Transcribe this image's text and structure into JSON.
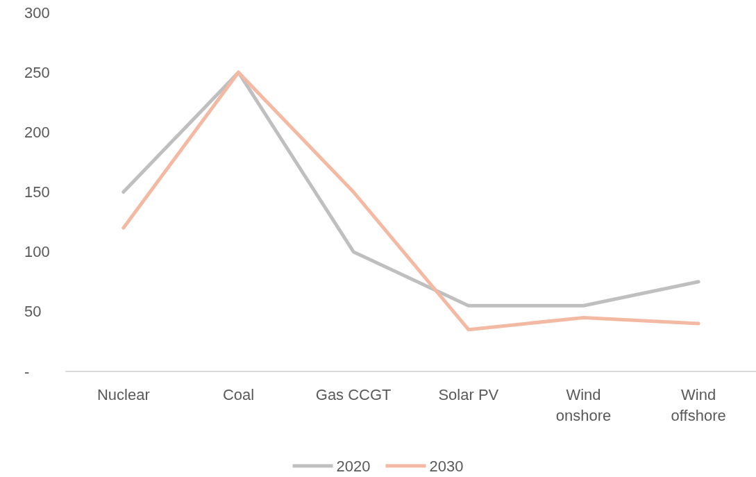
{
  "chart_data": {
    "type": "line",
    "categories": [
      "Nuclear",
      "Coal",
      "Gas CCGT",
      "Solar PV",
      "Wind\nonshore",
      "Wind\noffshore"
    ],
    "series": [
      {
        "name": "2020",
        "color": "#bfbfbf",
        "values": [
          150,
          250,
          100,
          55,
          55,
          75
        ]
      },
      {
        "name": "2030",
        "color": "#f4b9a2",
        "values": [
          120,
          250,
          150,
          35,
          45,
          40
        ]
      }
    ],
    "ylim": [
      0,
      300
    ],
    "yticks": [
      {
        "value": 0,
        "label": "-"
      },
      50,
      100,
      150,
      200,
      250,
      300
    ],
    "grid": false,
    "legend": "bottom",
    "marker": "none",
    "line_style": "solid"
  }
}
